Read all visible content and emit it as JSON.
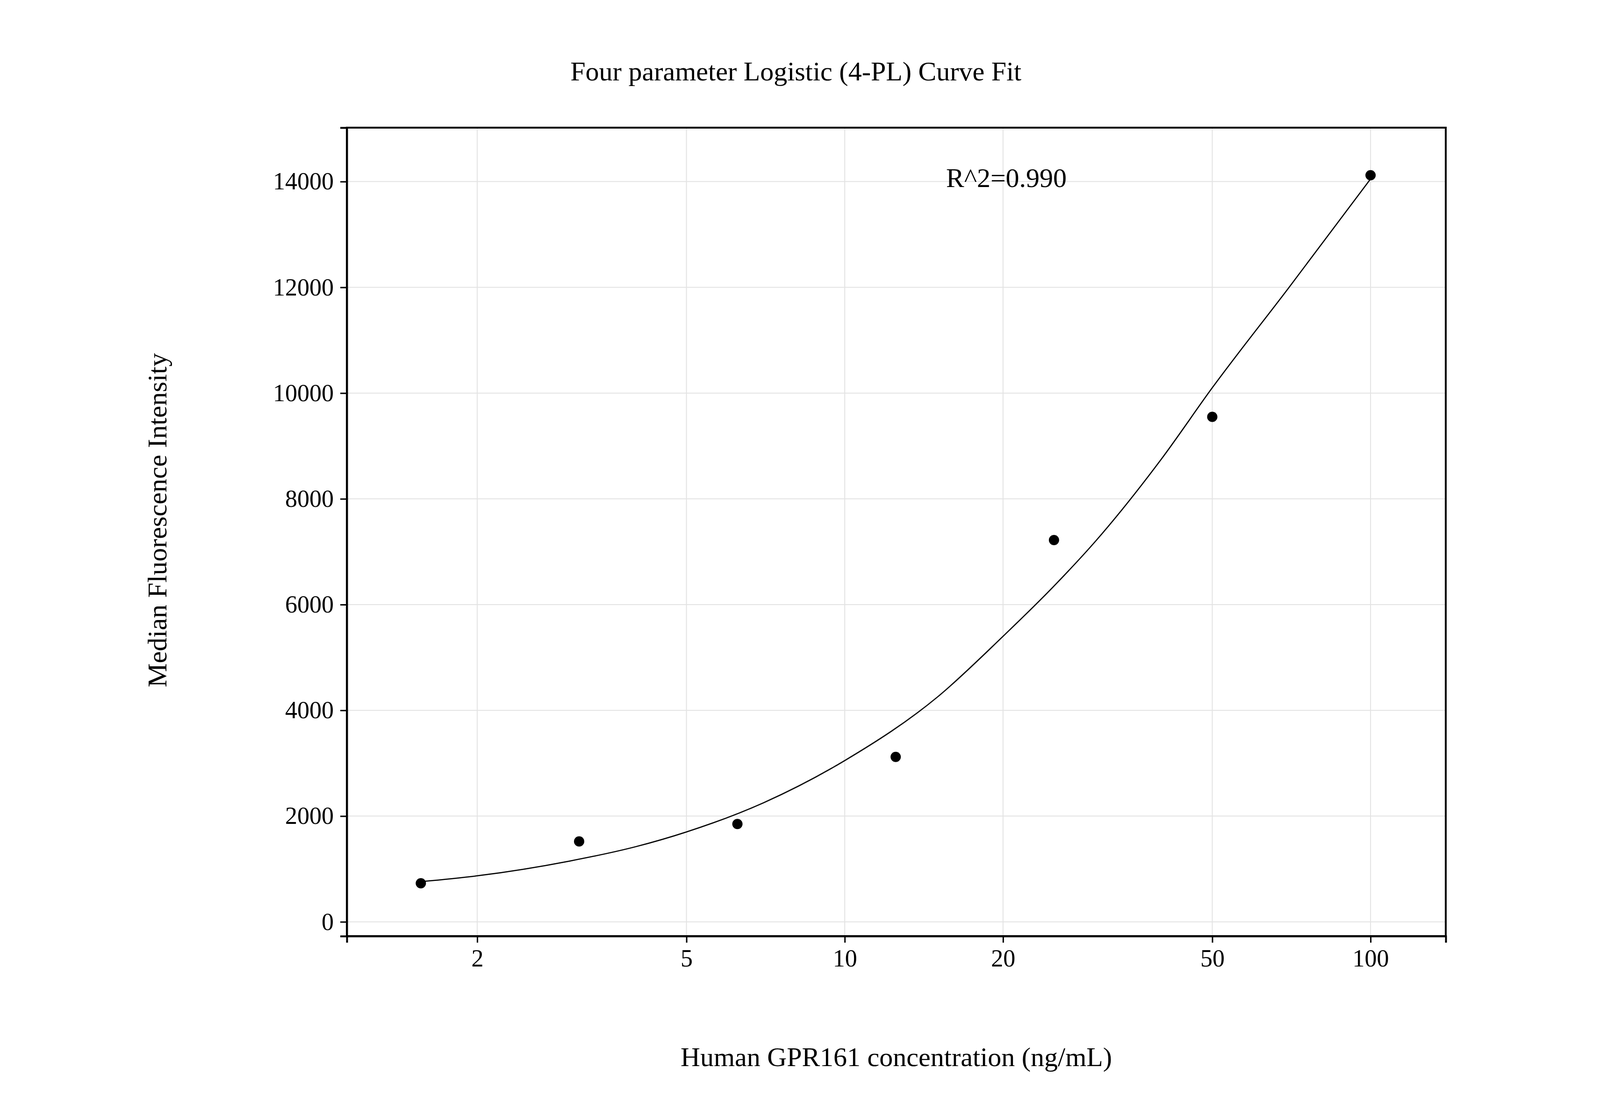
{
  "chart_data": {
    "type": "scatter",
    "title": "Four parameter Logistic (4-PL) Curve Fit",
    "x_label": "Human GPR161 concentration (ng/mL)",
    "y_label": "Median Fluorescence Intensity",
    "annotation": "R^2=0.990",
    "log": "x",
    "grid": true,
    "xlim": [
      1.13,
      139
    ],
    "ylim": [
      -270,
      15020
    ],
    "xticks": [
      2,
      5,
      10,
      20,
      50,
      100
    ],
    "yticks": [
      0,
      2000,
      4000,
      6000,
      8000,
      10000,
      12000,
      14000
    ],
    "series": [
      {
        "type": "scatter",
        "marker": "circle",
        "color": "#000000",
        "x": [
          1.5625,
          3.125,
          6.25,
          12.5,
          25,
          50,
          100
        ],
        "values": [
          730,
          1520,
          1850,
          3120,
          7220,
          9550,
          14120
        ]
      },
      {
        "type": "line",
        "line_style": "solid",
        "color": "#000000",
        "x": [
          1.5625,
          2,
          3,
          4,
          5,
          7,
          10,
          15,
          20,
          25,
          30,
          40,
          50,
          70,
          100
        ],
        "values": [
          760,
          870,
          1150,
          1420,
          1700,
          2250,
          3050,
          4250,
          5400,
          6350,
          7200,
          8750,
          10100,
          12000,
          14050
        ]
      }
    ]
  }
}
